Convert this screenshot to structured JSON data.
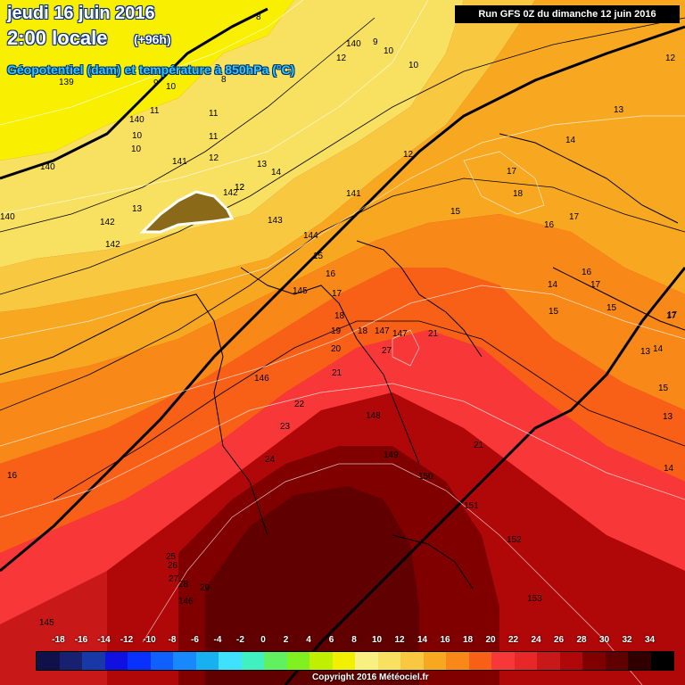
{
  "header": {
    "date": "jeudi 16 juin 2016",
    "time": "2:00 locale",
    "lead": "(+96h)",
    "parameter": "Géopotentiel (dam) et température à 850hPa (°C)",
    "run": "Run GFS 0Z du dimanche 12 juin 2016"
  },
  "legend": {
    "ticks": [
      "-18",
      "-16",
      "-14",
      "-12",
      "-10",
      "-8",
      "-6",
      "-4",
      "-2",
      "0",
      "2",
      "4",
      "6",
      "8",
      "10",
      "12",
      "14",
      "16",
      "18",
      "20",
      "22",
      "24",
      "26",
      "28",
      "30",
      "32",
      "34"
    ],
    "colors": [
      "#10104a",
      "#182070",
      "#1838a8",
      "#1010e0",
      "#0830ff",
      "#1060ff",
      "#1888ff",
      "#18b0f0",
      "#40e0ff",
      "#40f0c0",
      "#60f060",
      "#80f020",
      "#c0f000",
      "#f0f000",
      "#f8f080",
      "#f8e060",
      "#f8c840",
      "#f8a820",
      "#f88818",
      "#f86018",
      "#f83838",
      "#e82828",
      "#c81818",
      "#b00808",
      "#800000",
      "#600000",
      "#300000",
      "#000000"
    ],
    "copyright": "Copyright 2016 Météociel.fr"
  },
  "map_labels": {
    "geopotential": [
      "139",
      "140",
      "140",
      "141",
      "141",
      "142",
      "142",
      "142",
      "143",
      "144",
      "145",
      "145",
      "146",
      "146",
      "147",
      "147",
      "148",
      "149",
      "150",
      "151",
      "152",
      "153",
      "140",
      "140"
    ],
    "temperature": [
      "8",
      "8",
      "9",
      "9",
      "10",
      "10",
      "10",
      "10",
      "10",
      "11",
      "11",
      "11",
      "12",
      "12",
      "12",
      "12",
      "12",
      "13",
      "13",
      "13",
      "14",
      "14",
      "14",
      "14",
      "15",
      "15",
      "15",
      "15",
      "16",
      "16",
      "16",
      "16",
      "17",
      "17",
      "17",
      "17",
      "17",
      "18",
      "18",
      "18",
      "19",
      "20",
      "21",
      "21",
      "21",
      "22",
      "23",
      "24",
      "25",
      "26",
      "27",
      "28",
      "29",
      "27",
      "17",
      "13",
      "15",
      "13",
      "14",
      "12"
    ]
  },
  "colors": {
    "cold_yellow": "#f8f000",
    "warm_orange": "#f8a820",
    "hot_red": "#f83838",
    "very_hot": "#600000",
    "title_blue": "#30c8ff"
  }
}
